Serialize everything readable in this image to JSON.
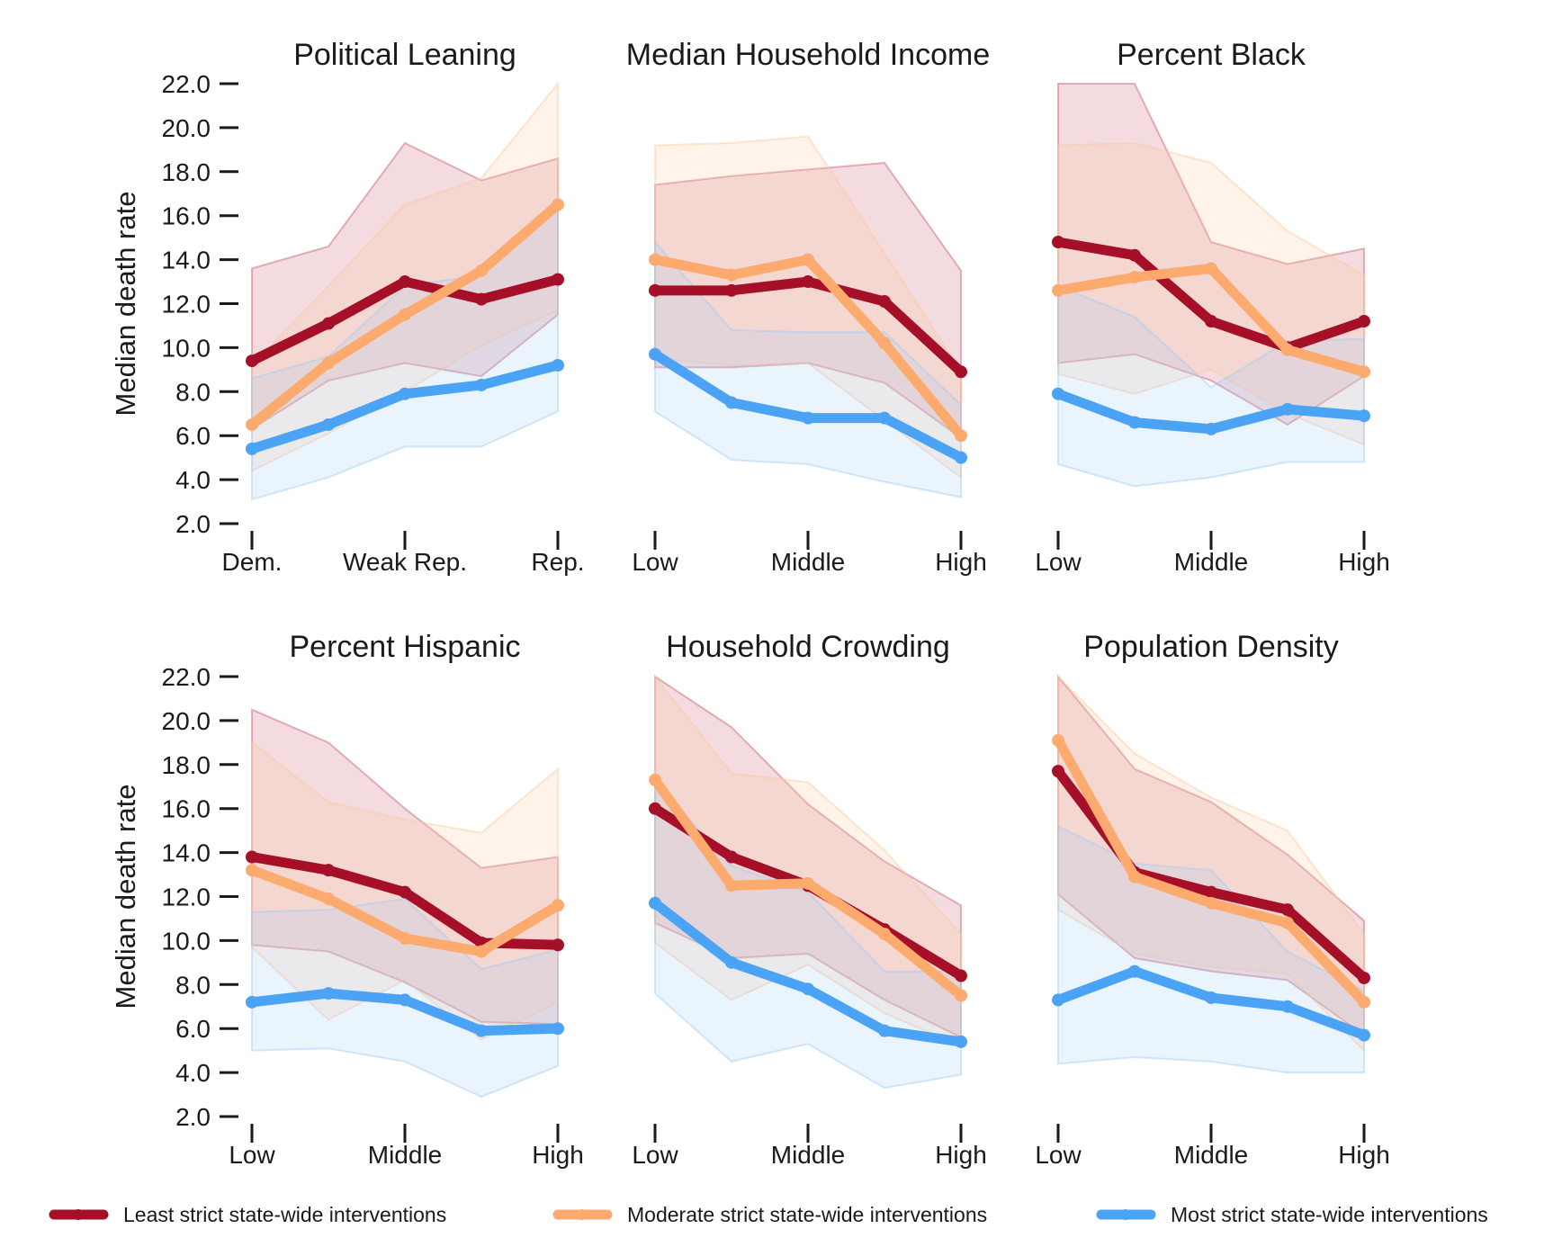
{
  "series_styles": [
    {
      "key": "least",
      "color": "#a50f28",
      "band_color": "#c85a6e"
    },
    {
      "key": "moderate",
      "color": "#fdaa6e",
      "band_color": "#fdc8a0"
    },
    {
      "key": "most",
      "color": "#4aa3f5",
      "band_color": "#9fcdf7"
    }
  ],
  "legend": {
    "placement": "bottom",
    "items": [
      "Least strict state-wide interventions",
      "Moderate strict state-wide interventions",
      "Most strict state-wide interventions"
    ]
  },
  "chart_data": [
    {
      "type": "line",
      "title": "Political Leaning",
      "ylabel": "Median death rate",
      "ylim": [
        2,
        22
      ],
      "yticks": [
        "2.0",
        "4.0",
        "6.0",
        "8.0",
        "10.0",
        "12.0",
        "14.0",
        "16.0",
        "18.0",
        "20.0",
        "22.0"
      ],
      "x": [
        1,
        2,
        3,
        4,
        5
      ],
      "xticks": {
        "1": "Dem.",
        "3": "Weak Rep.",
        "5": "Rep."
      },
      "series": [
        {
          "name": "Least strict state-wide interventions",
          "values": [
            9.4,
            11.1,
            13.0,
            12.2,
            13.1
          ],
          "lower": [
            6.3,
            8.5,
            9.3,
            8.7,
            11.5
          ],
          "upper": [
            13.6,
            14.6,
            19.3,
            17.6,
            18.6
          ]
        },
        {
          "name": "Moderate strict state-wide interventions",
          "values": [
            6.5,
            9.3,
            11.5,
            13.5,
            16.5
          ],
          "lower": [
            4.4,
            6.1,
            8.0,
            10.1,
            11.7
          ],
          "upper": [
            9.2,
            12.8,
            16.5,
            17.7,
            22.0
          ]
        },
        {
          "name": "Most strict state-wide interventions",
          "values": [
            5.4,
            6.5,
            7.9,
            8.3,
            9.2
          ],
          "lower": [
            3.1,
            4.1,
            5.5,
            5.5,
            7.1
          ],
          "upper": [
            8.6,
            9.6,
            12.8,
            13.3,
            16.6
          ]
        }
      ]
    },
    {
      "type": "line",
      "title": "Median Household Income",
      "ylim": [
        2,
        22
      ],
      "x": [
        1,
        2,
        3,
        4,
        5
      ],
      "xticks": {
        "1": "Low",
        "3": "Middle",
        "5": "High"
      },
      "series": [
        {
          "name": "Least strict state-wide interventions",
          "values": [
            12.6,
            12.6,
            13.0,
            12.1,
            8.9
          ],
          "lower": [
            9.1,
            9.1,
            9.3,
            8.4,
            5.9
          ],
          "upper": [
            17.4,
            17.8,
            18.1,
            18.4,
            13.5
          ]
        },
        {
          "name": "Moderate strict state-wide interventions",
          "values": [
            14.0,
            13.3,
            14.0,
            10.2,
            6.0
          ],
          "lower": [
            9.5,
            9.2,
            9.3,
            6.7,
            4.1
          ],
          "upper": [
            19.2,
            19.3,
            19.6,
            14.3,
            8.9
          ]
        },
        {
          "name": "Most strict state-wide interventions",
          "values": [
            9.7,
            7.5,
            6.8,
            6.8,
            5.0
          ],
          "lower": [
            7.1,
            4.9,
            4.7,
            3.9,
            3.2
          ],
          "upper": [
            14.8,
            10.8,
            10.7,
            10.7,
            7.4
          ]
        }
      ]
    },
    {
      "type": "line",
      "title": "Percent Black",
      "ylim": [
        2,
        22
      ],
      "x": [
        1,
        2,
        3,
        4,
        5
      ],
      "xticks": {
        "1": "Low",
        "3": "Middle",
        "5": "High"
      },
      "series": [
        {
          "name": "Least strict state-wide interventions",
          "values": [
            14.8,
            14.2,
            11.2,
            10.0,
            11.2
          ],
          "lower": [
            9.3,
            9.7,
            8.5,
            6.5,
            8.7
          ],
          "upper": [
            22.0,
            22.0,
            14.8,
            13.8,
            14.5
          ]
        },
        {
          "name": "Moderate strict state-wide interventions",
          "values": [
            12.6,
            13.2,
            13.6,
            9.9,
            8.9
          ],
          "lower": [
            8.8,
            7.9,
            9.0,
            7.0,
            5.6
          ],
          "upper": [
            19.2,
            19.3,
            18.4,
            15.3,
            13.3
          ]
        },
        {
          "name": "Most strict state-wide interventions",
          "values": [
            7.9,
            6.6,
            6.3,
            7.2,
            6.9
          ],
          "lower": [
            4.7,
            3.7,
            4.1,
            4.8,
            4.8
          ],
          "upper": [
            12.8,
            11.4,
            8.2,
            10.3,
            10.4
          ]
        }
      ]
    },
    {
      "type": "line",
      "title": "Percent Hispanic",
      "ylabel": "Median death rate",
      "ylim": [
        2,
        22
      ],
      "yticks": [
        "2.0",
        "4.0",
        "6.0",
        "8.0",
        "10.0",
        "12.0",
        "14.0",
        "16.0",
        "18.0",
        "20.0",
        "22.0"
      ],
      "x": [
        1,
        2,
        3,
        4,
        5
      ],
      "xticks": {
        "1": "Low",
        "3": "Middle",
        "5": "High"
      },
      "series": [
        {
          "name": "Least strict state-wide interventions",
          "values": [
            13.8,
            13.2,
            12.2,
            9.9,
            9.8
          ],
          "lower": [
            9.8,
            9.5,
            8.1,
            6.3,
            6.2
          ],
          "upper": [
            20.5,
            19.0,
            16.0,
            13.3,
            13.8
          ]
        },
        {
          "name": "Moderate strict state-wide interventions",
          "values": [
            13.2,
            11.9,
            10.1,
            9.5,
            11.6
          ],
          "lower": [
            9.7,
            6.4,
            8.2,
            5.5,
            7.2
          ],
          "upper": [
            19.0,
            16.3,
            15.5,
            14.9,
            17.8
          ]
        },
        {
          "name": "Most strict state-wide interventions",
          "values": [
            7.2,
            7.6,
            7.3,
            5.9,
            6.0
          ],
          "lower": [
            5.0,
            5.1,
            4.5,
            2.9,
            4.3
          ],
          "upper": [
            11.3,
            11.4,
            11.9,
            8.7,
            9.6
          ]
        }
      ]
    },
    {
      "type": "line",
      "title": "Household Crowding",
      "ylim": [
        2,
        22
      ],
      "x": [
        1,
        2,
        3,
        4,
        5
      ],
      "xticks": {
        "1": "Low",
        "3": "Middle",
        "5": "High"
      },
      "series": [
        {
          "name": "Least strict state-wide interventions",
          "values": [
            16.0,
            13.8,
            12.5,
            10.5,
            8.4
          ],
          "lower": [
            10.8,
            9.2,
            9.4,
            7.3,
            5.6
          ],
          "upper": [
            22.0,
            19.7,
            16.2,
            13.6,
            11.6
          ]
        },
        {
          "name": "Moderate strict state-wide interventions",
          "values": [
            17.3,
            12.5,
            12.6,
            10.3,
            7.5
          ],
          "lower": [
            9.9,
            7.3,
            8.9,
            6.7,
            5.2
          ],
          "upper": [
            22.0,
            17.6,
            17.2,
            14.1,
            10.3
          ]
        },
        {
          "name": "Most strict state-wide interventions",
          "values": [
            11.7,
            9.0,
            7.8,
            5.9,
            5.4
          ],
          "lower": [
            7.6,
            4.5,
            5.3,
            3.3,
            3.9
          ],
          "upper": [
            17.2,
            13.4,
            12.2,
            8.6,
            8.6
          ]
        }
      ]
    },
    {
      "type": "line",
      "title": "Population Density",
      "ylim": [
        2,
        22
      ],
      "x": [
        1,
        2,
        3,
        4,
        5
      ],
      "xticks": {
        "1": "Low",
        "3": "Middle",
        "5": "High"
      },
      "series": [
        {
          "name": "Least strict state-wide interventions",
          "values": [
            17.7,
            13.1,
            12.2,
            11.4,
            8.3
          ],
          "lower": [
            12.1,
            9.2,
            8.6,
            8.2,
            5.7
          ],
          "upper": [
            22.0,
            17.8,
            16.3,
            13.9,
            10.9
          ]
        },
        {
          "name": "Moderate strict state-wide interventions",
          "values": [
            19.1,
            12.9,
            11.7,
            10.8,
            7.2
          ],
          "lower": [
            11.4,
            9.4,
            8.8,
            8.5,
            5.0
          ],
          "upper": [
            22.0,
            18.5,
            16.5,
            15.0,
            10.3
          ]
        },
        {
          "name": "Most strict state-wide interventions",
          "values": [
            7.3,
            8.6,
            7.4,
            7.0,
            5.7
          ],
          "lower": [
            4.4,
            4.7,
            4.5,
            4.0,
            4.0
          ],
          "upper": [
            15.2,
            13.5,
            13.2,
            9.5,
            7.7
          ]
        }
      ]
    }
  ]
}
